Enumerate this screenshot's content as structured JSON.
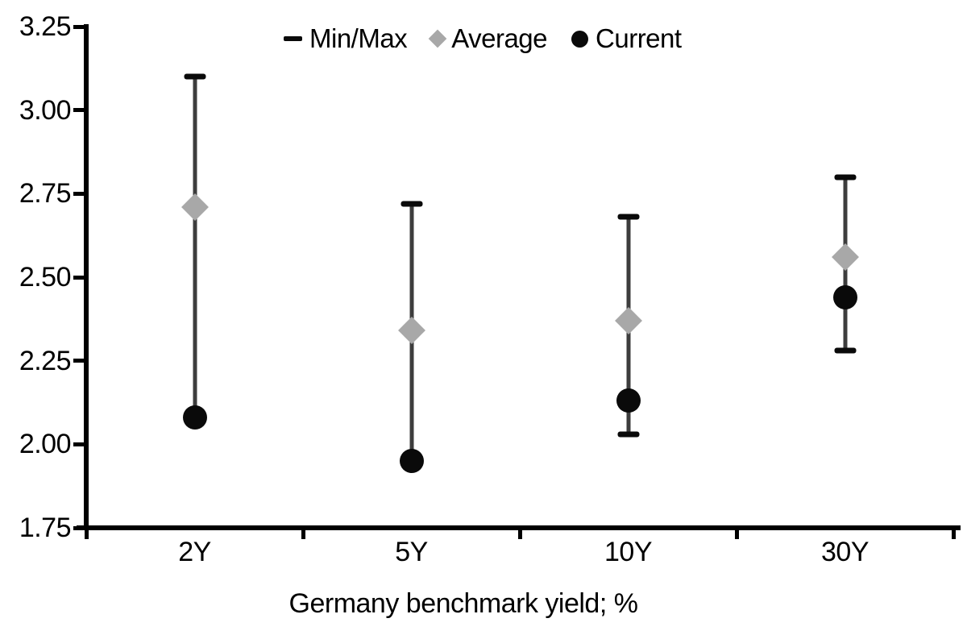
{
  "chart_data": {
    "type": "scatter",
    "subtype": "min-max-range-with-average-and-current",
    "title": "",
    "xlabel": "Germany benchmark yield; %",
    "ylabel": "",
    "ylim": [
      1.75,
      3.25
    ],
    "ytick_step": 0.25,
    "y_tick_labels": [
      "3.25",
      "3.00",
      "2.75",
      "2.50",
      "2.25",
      "2.00",
      "1.75"
    ],
    "categories": [
      "2Y",
      "5Y",
      "10Y",
      "30Y"
    ],
    "grid": false,
    "legend_position": "top-center",
    "legend": [
      {
        "label": "Min/Max",
        "marker": "dash",
        "color": "#0a0a0a"
      },
      {
        "label": "Average",
        "marker": "diamond",
        "color": "#a8a8a8"
      },
      {
        "label": "Current",
        "marker": "circle",
        "color": "#0a0a0a"
      }
    ],
    "series": [
      {
        "name": "Min/Max",
        "marker": "dash",
        "color": "#0a0a0a",
        "min": [
          2.08,
          1.95,
          2.03,
          2.28
        ],
        "max": [
          3.1,
          2.72,
          2.68,
          2.8
        ]
      },
      {
        "name": "Average",
        "marker": "diamond",
        "color": "#a8a8a8",
        "values": [
          2.71,
          2.34,
          2.37,
          2.56
        ]
      },
      {
        "name": "Current",
        "marker": "circle",
        "color": "#0a0a0a",
        "values": [
          2.08,
          1.95,
          2.13,
          2.44
        ]
      }
    ],
    "points": [
      {
        "tenor": "2Y",
        "min": 2.08,
        "max": 3.1,
        "average": 2.71,
        "current": 2.08
      },
      {
        "tenor": "5Y",
        "min": 1.95,
        "max": 2.72,
        "average": 2.34,
        "current": 1.95
      },
      {
        "tenor": "10Y",
        "min": 2.03,
        "max": 2.68,
        "average": 2.37,
        "current": 2.13
      },
      {
        "tenor": "30Y",
        "min": 2.28,
        "max": 2.8,
        "average": 2.56,
        "current": 2.44
      }
    ],
    "colors": {
      "range_line": "#3d3d3d",
      "cap": "#0a0a0a",
      "average": "#a8a8a8",
      "current": "#0a0a0a",
      "axis": "#000000",
      "text": "#000000"
    }
  }
}
